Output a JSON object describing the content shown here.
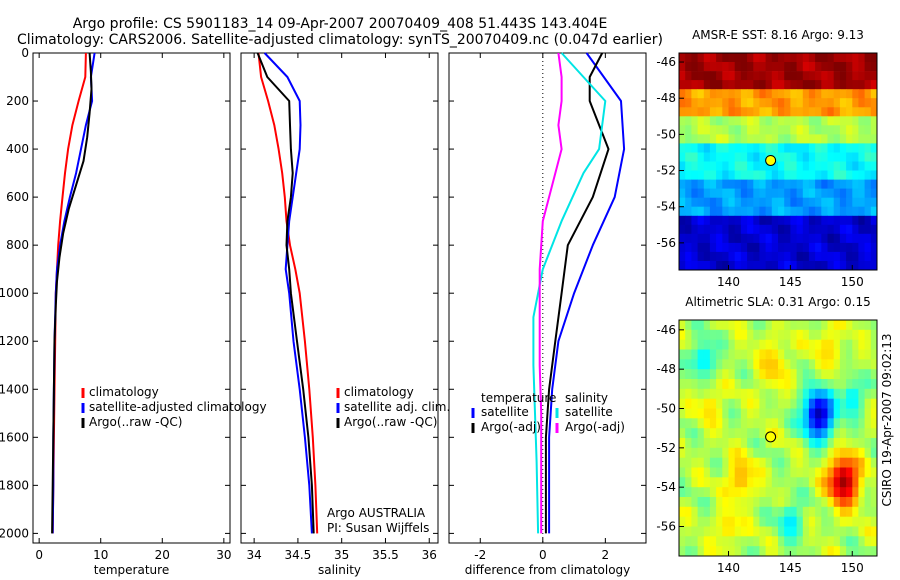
{
  "title": {
    "line1": "Argo profile: CS 5901183_14 09-Apr-2007 20070409_408 51.443S 143.404E",
    "line2": "Climatology: CARS2006. Satellite-adjusted climatology: synTS_20070409.nc (0.047d earlier)"
  },
  "side_label": "CSIRO 19-Apr-2007 09:02:13",
  "colors": {
    "climatology": "#ff0000",
    "satellite": "#0000ff",
    "argo": "#000000",
    "salinity_satellite": "#00e5e5",
    "salinity_argo": "#ff00ff"
  },
  "chart_data": [
    {
      "type": "line",
      "xlabel": "temperature",
      "xlim": [
        -1,
        31
      ],
      "ylim": [
        2040,
        0
      ],
      "xticks": [
        0,
        10,
        20,
        30
      ],
      "yticks": [
        0,
        200,
        400,
        600,
        800,
        1000,
        1200,
        1400,
        1600,
        1800,
        2000
      ],
      "y_inverted": true,
      "legend": [
        "climatology",
        "satellite-adjusted climatology",
        "Argo(..raw -QC)"
      ],
      "legend_placement": "bottom-right",
      "series": [
        {
          "name": "climatology",
          "color": "#ff0000",
          "points": [
            [
              7.6,
              0
            ],
            [
              7.5,
              100
            ],
            [
              6.4,
              200
            ],
            [
              5.4,
              300
            ],
            [
              4.7,
              400
            ],
            [
              4.2,
              500
            ],
            [
              3.8,
              600
            ],
            [
              3.4,
              700
            ],
            [
              3.1,
              800
            ],
            [
              2.9,
              900
            ],
            [
              2.7,
              1000
            ],
            [
              2.6,
              1200
            ],
            [
              2.5,
              1400
            ],
            [
              2.4,
              1600
            ],
            [
              2.3,
              1800
            ],
            [
              2.2,
              2000
            ]
          ]
        },
        {
          "name": "satellite-adjusted climatology",
          "color": "#0000ff",
          "points": [
            [
              9.0,
              0
            ],
            [
              8.4,
              100
            ],
            [
              8.6,
              200
            ],
            [
              7.6,
              300
            ],
            [
              6.8,
              400
            ],
            [
              6.0,
              500
            ],
            [
              5.0,
              600
            ],
            [
              4.1,
              700
            ],
            [
              3.4,
              800
            ],
            [
              2.9,
              900
            ],
            [
              2.7,
              1000
            ],
            [
              2.5,
              1200
            ],
            [
              2.4,
              1400
            ],
            [
              2.3,
              1600
            ],
            [
              2.3,
              1800
            ],
            [
              2.2,
              2000
            ]
          ]
        },
        {
          "name": "Argo(..raw -QC)",
          "color": "#000000",
          "points": [
            [
              8.2,
              0
            ],
            [
              8.4,
              80
            ],
            [
              8.5,
              150
            ],
            [
              8.2,
              250
            ],
            [
              7.8,
              350
            ],
            [
              7.2,
              450
            ],
            [
              6.0,
              550
            ],
            [
              4.8,
              650
            ],
            [
              3.9,
              750
            ],
            [
              3.3,
              850
            ],
            [
              2.9,
              950
            ],
            [
              2.7,
              1050
            ],
            [
              2.5,
              1200
            ],
            [
              2.4,
              1400
            ],
            [
              2.3,
              1600
            ],
            [
              2.2,
              1800
            ],
            [
              2.1,
              2000
            ]
          ]
        }
      ]
    },
    {
      "type": "line",
      "xlabel": "salinity",
      "xlim": [
        33.85,
        36.1
      ],
      "ylim": [
        2040,
        0
      ],
      "xticks": [
        34,
        34.5,
        35,
        35.5,
        36
      ],
      "y_inverted": true,
      "legend": [
        "climatology",
        "satellite adj. clim.",
        "Argo(..raw -QC)"
      ],
      "legend_placement": "bottom-right",
      "annotation": [
        "Argo AUSTRALIA",
        "PI: Susan Wijffels"
      ],
      "series": [
        {
          "name": "climatology",
          "color": "#ff0000",
          "points": [
            [
              34.05,
              0
            ],
            [
              34.08,
              100
            ],
            [
              34.16,
              200
            ],
            [
              34.23,
              300
            ],
            [
              34.28,
              400
            ],
            [
              34.32,
              500
            ],
            [
              34.35,
              600
            ],
            [
              34.37,
              700
            ],
            [
              34.41,
              800
            ],
            [
              34.47,
              900
            ],
            [
              34.52,
              1000
            ],
            [
              34.58,
              1200
            ],
            [
              34.63,
              1400
            ],
            [
              34.67,
              1600
            ],
            [
              34.7,
              1800
            ],
            [
              34.72,
              2000
            ]
          ]
        },
        {
          "name": "satellite adj. clim.",
          "color": "#0000ff",
          "points": [
            [
              34.12,
              0
            ],
            [
              34.38,
              100
            ],
            [
              34.52,
              200
            ],
            [
              34.53,
              300
            ],
            [
              34.52,
              400
            ],
            [
              34.48,
              500
            ],
            [
              34.44,
              600
            ],
            [
              34.4,
              700
            ],
            [
              34.38,
              800
            ],
            [
              34.36,
              900
            ],
            [
              34.4,
              1000
            ],
            [
              34.45,
              1200
            ],
            [
              34.52,
              1400
            ],
            [
              34.58,
              1600
            ],
            [
              34.63,
              1800
            ],
            [
              34.66,
              2000
            ]
          ]
        },
        {
          "name": "Argo(..raw -QC)",
          "color": "#000000",
          "points": [
            [
              34.04,
              0
            ],
            [
              34.15,
              100
            ],
            [
              34.4,
              200
            ],
            [
              34.41,
              300
            ],
            [
              34.42,
              400
            ],
            [
              34.44,
              500
            ],
            [
              34.42,
              600
            ],
            [
              34.38,
              700
            ],
            [
              34.37,
              800
            ],
            [
              34.4,
              900
            ],
            [
              34.42,
              1000
            ],
            [
              34.49,
              1200
            ],
            [
              34.56,
              1400
            ],
            [
              34.62,
              1600
            ],
            [
              34.66,
              1800
            ],
            [
              34.68,
              2000
            ]
          ]
        }
      ]
    },
    {
      "type": "line",
      "xlabel": "difference from climatology",
      "xlim": [
        -3,
        3.3
      ],
      "ylim": [
        2040,
        0
      ],
      "xticks": [
        -2,
        0,
        2
      ],
      "y_inverted": true,
      "zero_line": "dotted",
      "legend_groups": [
        {
          "title": "temperature",
          "entries": [
            "satellite",
            "Argo(-adj)"
          ]
        },
        {
          "title": "salinity",
          "entries": [
            "satellite",
            "Argo(-adj)"
          ]
        }
      ],
      "legend_placement": "bottom",
      "series": [
        {
          "name": "temperature satellite",
          "color": "#0000ff",
          "points": [
            [
              1.4,
              0
            ],
            [
              2.5,
              200
            ],
            [
              2.6,
              400
            ],
            [
              2.3,
              600
            ],
            [
              1.6,
              800
            ],
            [
              1.0,
              1000
            ],
            [
              0.5,
              1200
            ],
            [
              0.3,
              1400
            ],
            [
              0.2,
              1600
            ],
            [
              0.2,
              1800
            ],
            [
              0.2,
              2000
            ]
          ]
        },
        {
          "name": "temperature Argo(-adj)",
          "color": "#000000",
          "points": [
            [
              1.9,
              0
            ],
            [
              1.5,
              100
            ],
            [
              1.5,
              200
            ],
            [
              2.1,
              400
            ],
            [
              1.6,
              600
            ],
            [
              0.8,
              800
            ],
            [
              0.6,
              1000
            ],
            [
              0.4,
              1200
            ],
            [
              0.2,
              1400
            ],
            [
              0.1,
              1600
            ],
            [
              0.1,
              1800
            ],
            [
              0.1,
              2000
            ]
          ]
        },
        {
          "name": "salinity satellite",
          "color": "#00e5e5",
          "points": [
            [
              0.6,
              0
            ],
            [
              2.0,
              200
            ],
            [
              1.8,
              400
            ],
            [
              1.3,
              500
            ],
            [
              0.6,
              700
            ],
            [
              0.0,
              900
            ],
            [
              -0.3,
              1100
            ],
            [
              -0.3,
              1300
            ],
            [
              -0.25,
              1500
            ],
            [
              -0.2,
              1700
            ],
            [
              -0.15,
              2000
            ]
          ]
        },
        {
          "name": "salinity Argo(-adj)",
          "color": "#ff00ff",
          "points": [
            [
              0.5,
              0
            ],
            [
              0.6,
              100
            ],
            [
              0.6,
              200
            ],
            [
              0.5,
              300
            ],
            [
              0.6,
              400
            ],
            [
              0.3,
              550
            ],
            [
              0.0,
              700
            ],
            [
              -0.1,
              900
            ],
            [
              -0.1,
              1100
            ],
            [
              -0.1,
              1300
            ],
            [
              -0.05,
              1500
            ],
            [
              -0.05,
              1800
            ],
            [
              -0.05,
              2000
            ]
          ]
        }
      ]
    },
    {
      "type": "heatmap",
      "title": "AMSR-E SST: 8.16 Argo: 9.13",
      "xlim": [
        136,
        152
      ],
      "ylim": [
        -57.5,
        -45.5
      ],
      "xticks": [
        140,
        145,
        150
      ],
      "yticks": [
        -46,
        -48,
        -50,
        -52,
        -54,
        -56
      ],
      "marker": {
        "lon": 143.404,
        "lat": -51.443
      },
      "colormap": "jet",
      "bands": [
        {
          "lat_from": -45.5,
          "lat_to": -47.5,
          "level": 0.97
        },
        {
          "lat_from": -47.5,
          "lat_to": -49.0,
          "level": 0.72
        },
        {
          "lat_from": -49.0,
          "lat_to": -50.5,
          "level": 0.55
        },
        {
          "lat_from": -50.5,
          "lat_to": -52.5,
          "level": 0.38
        },
        {
          "lat_from": -52.5,
          "lat_to": -54.5,
          "level": 0.28
        },
        {
          "lat_from": -54.5,
          "lat_to": -57.5,
          "level": 0.08
        }
      ]
    },
    {
      "type": "heatmap",
      "title": "Altimetric SLA: 0.31 Argo: 0.15",
      "xlim": [
        136,
        152
      ],
      "ylim": [
        -57.5,
        -45.5
      ],
      "xticks": [
        140,
        145,
        150
      ],
      "yticks": [
        -46,
        -48,
        -50,
        -52,
        -54,
        -56
      ],
      "marker": {
        "lon": 143.404,
        "lat": -51.443
      },
      "colormap": "jet",
      "background_level": 0.55,
      "features": [
        {
          "lon": 147.3,
          "lat": -50.3,
          "level": 0.05,
          "r": 1.3
        },
        {
          "lon": 149.3,
          "lat": -53.7,
          "level": 0.97,
          "r": 1.3
        },
        {
          "lon": 141.0,
          "lat": -53.5,
          "level": 0.7,
          "r": 1.2
        },
        {
          "lon": 143.5,
          "lat": -47.8,
          "level": 0.68,
          "r": 1.3
        },
        {
          "lon": 148.0,
          "lat": -47.0,
          "level": 0.66,
          "r": 1.2
        },
        {
          "lon": 138.0,
          "lat": -47.5,
          "level": 0.35,
          "r": 1.0
        },
        {
          "lon": 150.0,
          "lat": -49.5,
          "level": 0.35,
          "r": 0.9
        },
        {
          "lon": 138.5,
          "lat": -50.0,
          "level": 0.66,
          "r": 1.0
        },
        {
          "lon": 145.0,
          "lat": -55.8,
          "level": 0.35,
          "r": 1.0
        },
        {
          "lon": 140.0,
          "lat": -56.0,
          "level": 0.66,
          "r": 1.0
        }
      ]
    }
  ]
}
